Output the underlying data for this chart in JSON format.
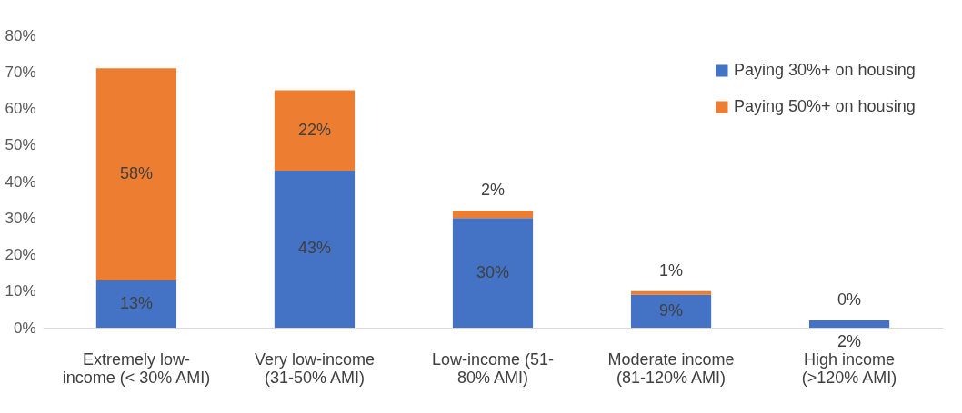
{
  "chart_data": {
    "type": "bar",
    "stacked": true,
    "categories": [
      "Extremely low-income (< 30% AMI)",
      "Very low-income (31-50% AMI)",
      "Low-income (51-80% AMI)",
      "Moderate income (81-120% AMI)",
      "High income (>120% AMI)"
    ],
    "series": [
      {
        "name": "Paying 30%+ on housing",
        "color": "#4472c4",
        "values": [
          13,
          43,
          30,
          9,
          2
        ],
        "value_labels": [
          "13%",
          "43%",
          "30%",
          "9%",
          "2%"
        ]
      },
      {
        "name": "Paying 50%+ on housing",
        "color": "#ed7d31",
        "values": [
          58,
          22,
          2,
          1,
          0
        ],
        "value_labels": [
          "58%",
          "22%",
          "2%",
          "1%",
          "0%"
        ]
      }
    ],
    "ylim": [
      0,
      80
    ],
    "yticks": [
      {
        "value": 0,
        "label": "0%"
      },
      {
        "value": 10,
        "label": "10%"
      },
      {
        "value": 20,
        "label": "20%"
      },
      {
        "value": 30,
        "label": "30%"
      },
      {
        "value": 40,
        "label": "40%"
      },
      {
        "value": 50,
        "label": "50%"
      },
      {
        "value": 60,
        "label": "60%"
      },
      {
        "value": 70,
        "label": "70%"
      },
      {
        "value": 80,
        "label": "80%"
      }
    ],
    "grid": false,
    "legend": "top right"
  }
}
